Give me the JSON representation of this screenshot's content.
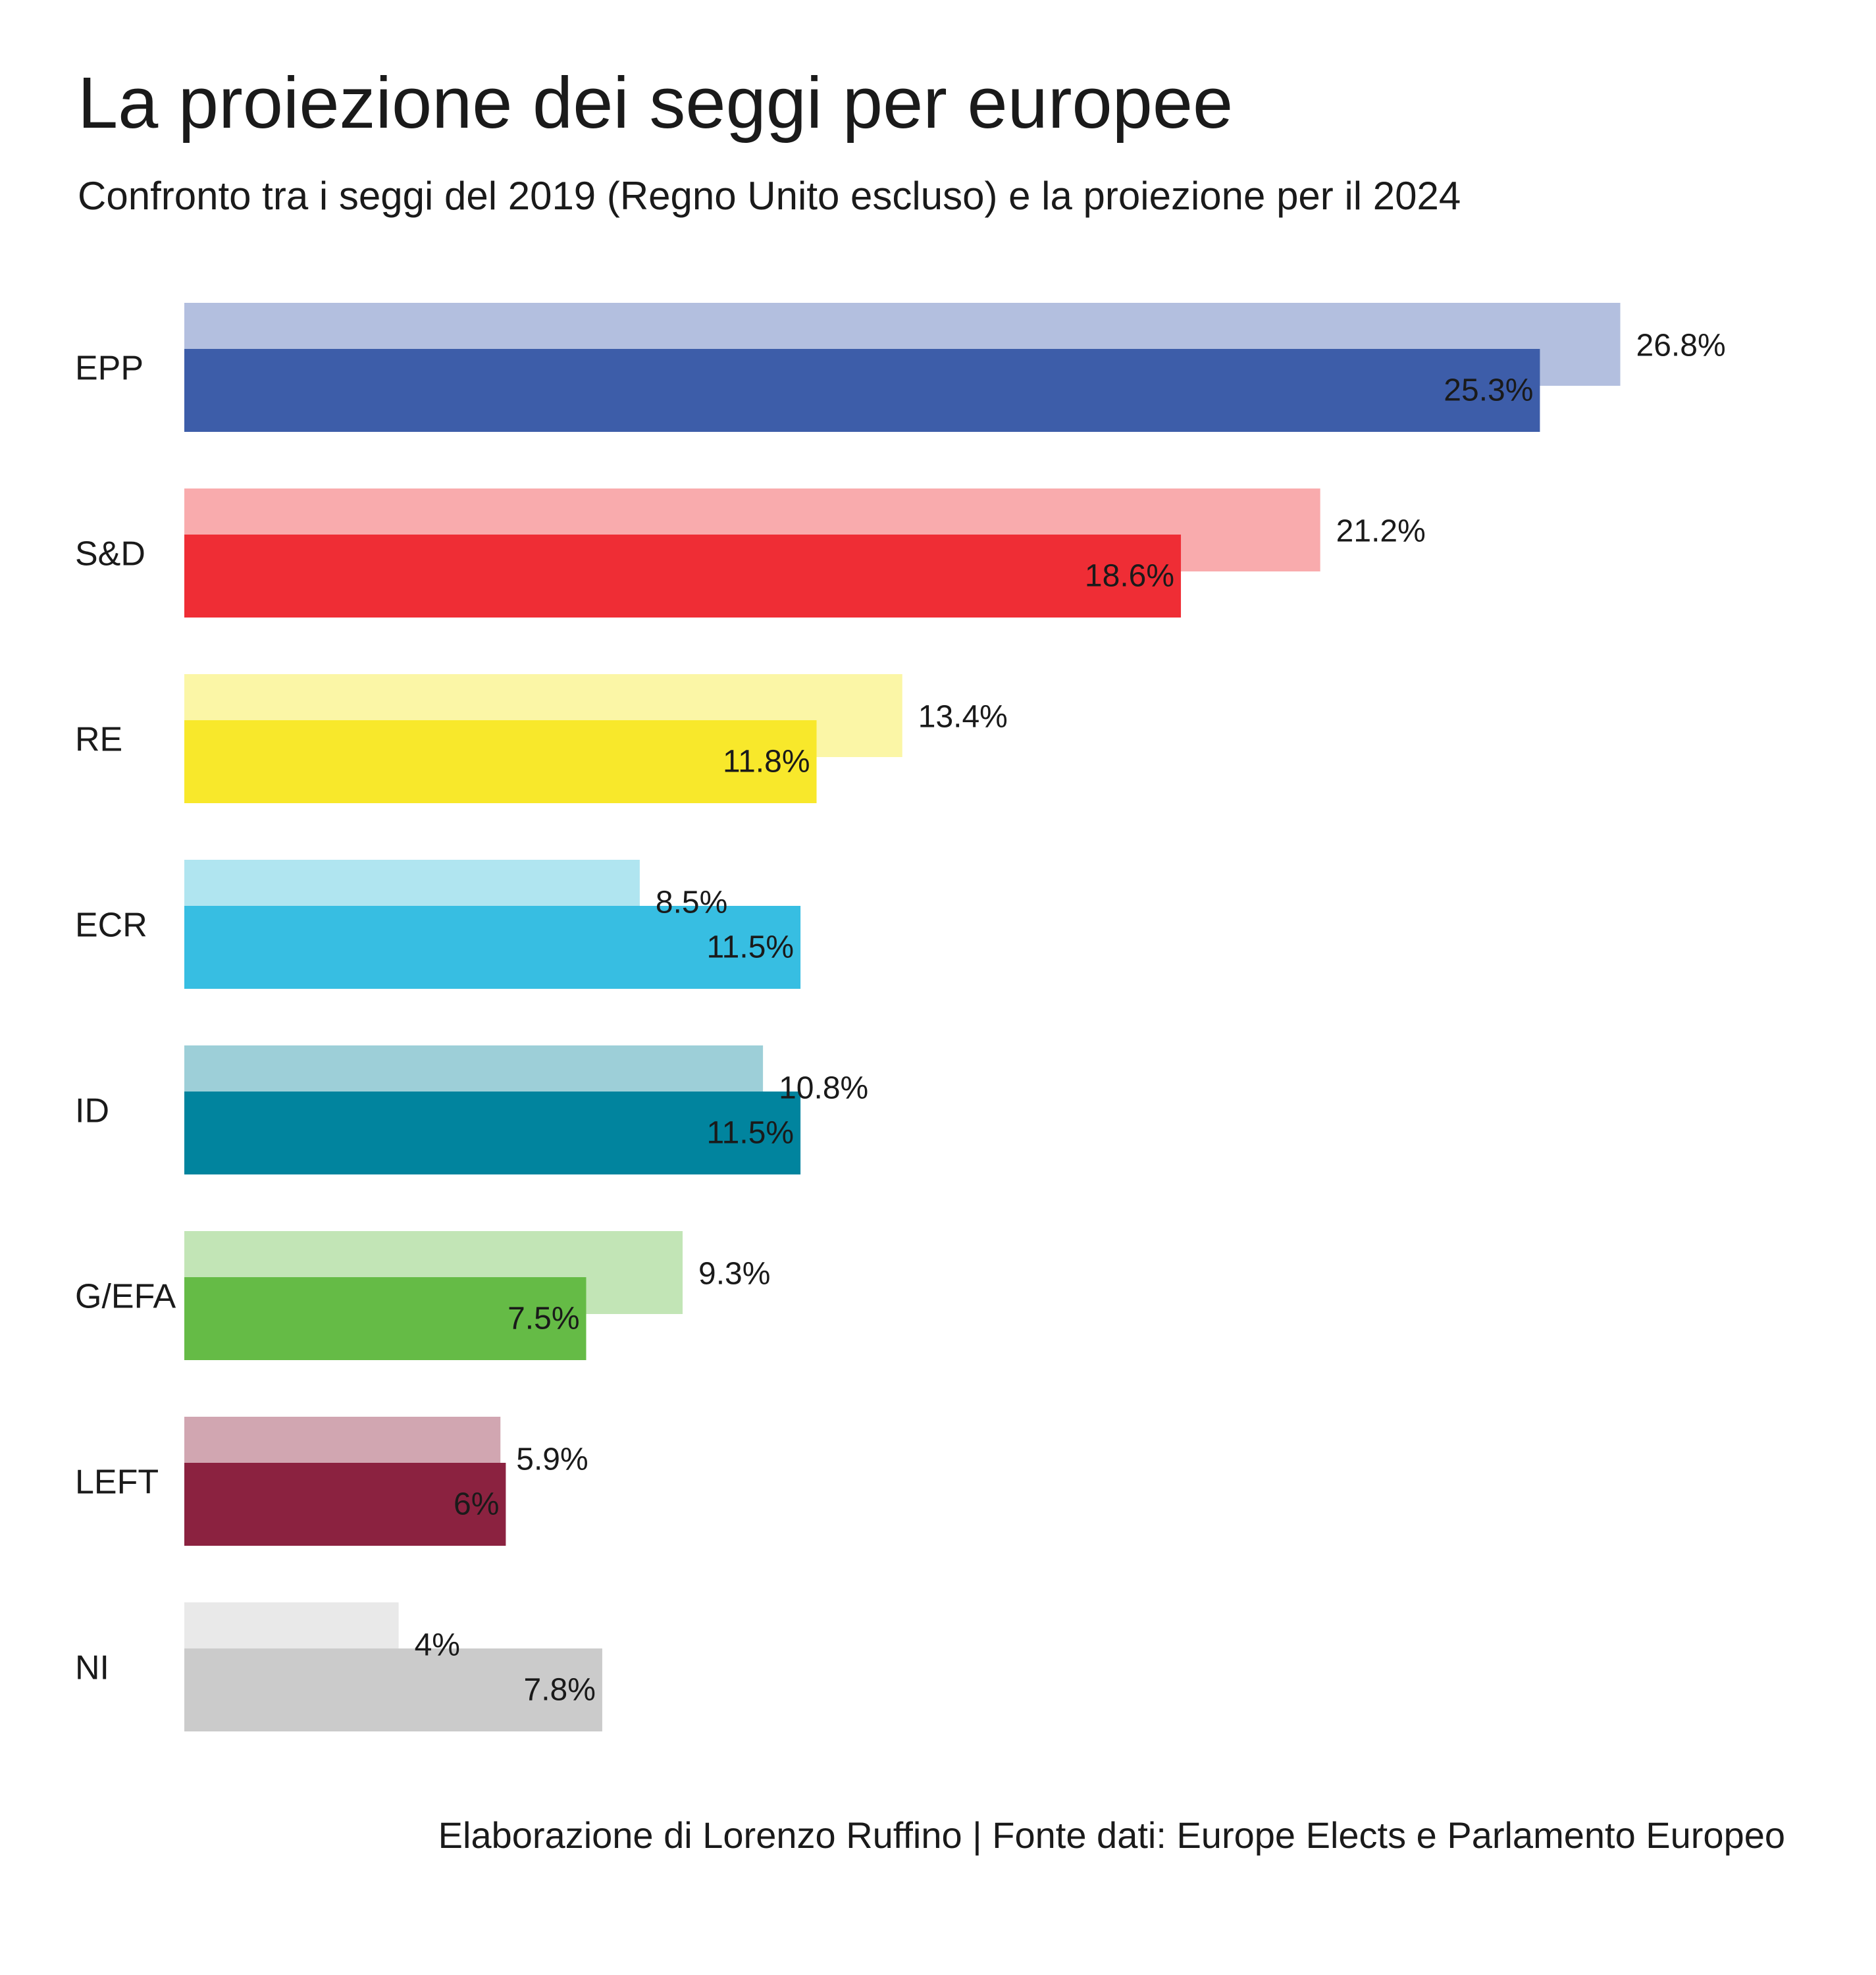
{
  "chart_data": {
    "type": "bar",
    "orientation": "horizontal",
    "title": "La proiezione dei seggi per europee",
    "subtitle": "Confronto tra i seggi del 2019 (Regno Unito escluso) e la proiezione per il 2024",
    "caption": "Elaborazione di Lorenzo Ruffino | Fonte dati: Europe Elects e Parlamento Europeo",
    "categories": [
      "EPP",
      "S&D",
      "RE",
      "ECR",
      "ID",
      "G/EFA",
      "LEFT",
      "NI"
    ],
    "series": [
      {
        "values": [
          26.8,
          21.2,
          13.4,
          8.5,
          10.8,
          9.3,
          5.9,
          4.0
        ],
        "labels": [
          "26.8%",
          "21.2%",
          "13.4%",
          "8.5%",
          "10.8%",
          "9.3%",
          "5.9%",
          "4%"
        ]
      },
      {
        "values": [
          25.3,
          18.6,
          11.8,
          11.5,
          11.5,
          7.5,
          6.0,
          7.8
        ],
        "labels": [
          "25.3%",
          "18.6%",
          "11.8%",
          "11.5%",
          "11.5%",
          "7.5%",
          "6%",
          "7.8%"
        ]
      }
    ],
    "colors_2019": [
      "#b3bfdf",
      "#f9abad",
      "#fbf6a6",
      "#b0e5f0",
      "#9dcfd8",
      "#c2e5b6",
      "#d1a6b1",
      "#e9e9e9"
    ],
    "colors_2024": [
      "#3d5da9",
      "#ef2d35",
      "#f8e82b",
      "#37bee2",
      "#01849e",
      "#65bb46",
      "#8b2240",
      "#cbcbcb"
    ],
    "xlim": [
      0,
      30
    ],
    "grid": false,
    "legend": "none"
  }
}
